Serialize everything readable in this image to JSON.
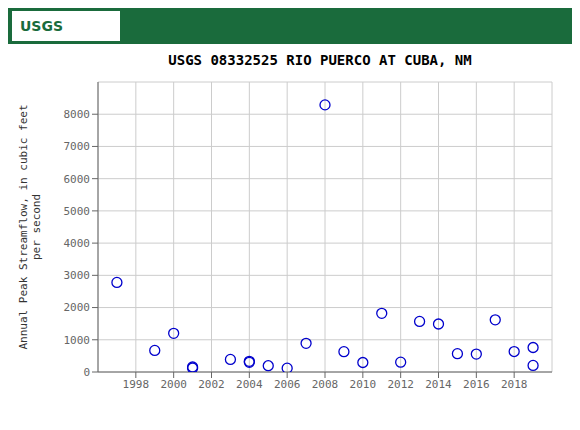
{
  "chart_data": {
    "type": "scatter",
    "title": "USGS 08332525 RIO PUERCO AT CUBA, NM",
    "ylabel": "Annual Peak Streamflow, in cubic feet\nper second",
    "annotations": [
      "USGS"
    ],
    "x": [
      1997,
      1999,
      2000,
      2001,
      2001,
      2003,
      2004,
      2004,
      2005,
      2006,
      2007,
      2008,
      2009,
      2010,
      2011,
      2012,
      2013,
      2014,
      2015,
      2016,
      2017,
      2018,
      2019,
      2019
    ],
    "values": [
      2780,
      670,
      1200,
      120,
      155,
      390,
      330,
      300,
      195,
      120,
      890,
      8290,
      630,
      295,
      1820,
      305,
      1570,
      1490,
      570,
      555,
      1620,
      635,
      205,
      760
    ],
    "xlim": [
      1996,
      2020
    ],
    "ylim": [
      0,
      9000
    ],
    "xticks": [
      1998,
      2000,
      2002,
      2004,
      2006,
      2008,
      2010,
      2012,
      2014,
      2016,
      2018
    ],
    "yticks": [
      0,
      1000,
      2000,
      3000,
      4000,
      5000,
      6000,
      7000,
      8000
    ],
    "color": "#0000cc",
    "marker": "open_circle",
    "grid": true
  }
}
